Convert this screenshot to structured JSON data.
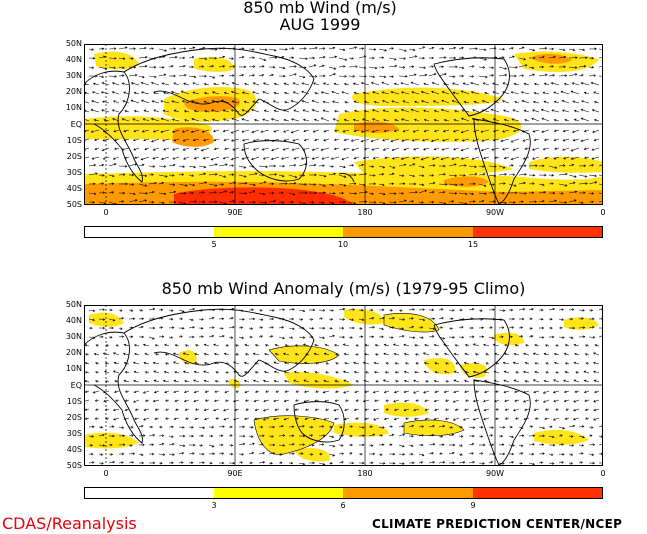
{
  "top": {
    "title_line1": "850 mb Wind (m/s)",
    "title_line2": "AUG 1999",
    "lat_labels": [
      "50N",
      "40N",
      "30N",
      "20N",
      "10N",
      "EQ",
      "10S",
      "20S",
      "30S",
      "40S",
      "50S"
    ],
    "lon_labels": [
      "0",
      "90E",
      "180",
      "90W",
      "0"
    ],
    "colorbar": {
      "labels": [
        "5",
        "10",
        "15"
      ],
      "colors": [
        "#ffffff",
        "#ffff00",
        "#ff9900",
        "#ff3300"
      ]
    }
  },
  "bottom": {
    "title": "850 mb Wind Anomaly (m/s) (1979-95 Climo)",
    "lat_labels": [
      "50N",
      "40N",
      "30N",
      "20N",
      "10N",
      "EQ",
      "10S",
      "20S",
      "30S",
      "40S",
      "50S"
    ],
    "lon_labels": [
      "0",
      "90E",
      "180",
      "90W",
      "0"
    ],
    "colorbar": {
      "labels": [
        "3",
        "6",
        "9"
      ],
      "colors": [
        "#ffffff",
        "#ffff00",
        "#ff9900",
        "#ff3300"
      ]
    }
  },
  "footer": {
    "left": "CDAS/Reanalysis",
    "right": "CLIMATE PREDICTION CENTER/NCEP"
  },
  "colors": {
    "yellow": "#ffe419",
    "orange": "#ff9b00",
    "red": "#ff2d00"
  }
}
